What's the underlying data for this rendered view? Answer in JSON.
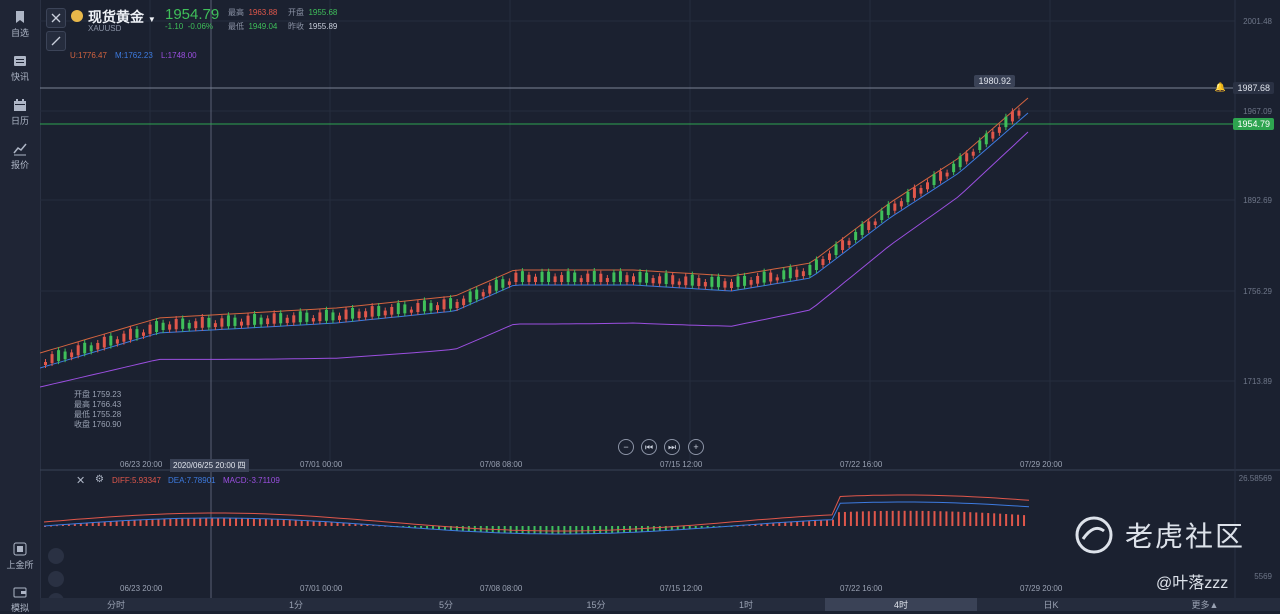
{
  "sidebar": {
    "items": [
      {
        "label": "自选",
        "icon": "bookmark-icon"
      },
      {
        "label": "快讯",
        "icon": "news-icon"
      },
      {
        "label": "日历",
        "icon": "calendar-icon"
      },
      {
        "label": "报价",
        "icon": "chart-line-icon"
      },
      {
        "label": "上金所",
        "icon": "exchange-icon"
      },
      {
        "label": "模拟",
        "icon": "wallet-icon"
      }
    ]
  },
  "header": {
    "symbol_name": "现货黄金",
    "symbol_code": "XAUUSD",
    "price": "1954.79",
    "change": "-1.10",
    "change_pct": "-0.06%",
    "high_label": "最高",
    "high": "1963.88",
    "open_label": "开盘",
    "open": "1955.68",
    "low_label": "最低",
    "low": "1949.04",
    "prev_label": "昨收",
    "prev": "1955.89"
  },
  "indicator": {
    "u": "U:1776.47",
    "m": "M:1762.23",
    "l": "L:1748.00"
  },
  "ohlc_box": {
    "open": "开盘 1759.23",
    "high": "最高 1766.43",
    "low": "最低 1755.28",
    "close": "收盘 1760.90"
  },
  "price_axis": [
    "2001.48",
    "1967.09",
    "1892.69",
    "1756.29",
    "1713.89"
  ],
  "price_tags": {
    "peak": "1980.92",
    "line": "1987.68",
    "current": "1954.79"
  },
  "time_axis": {
    "labels": [
      "06/23 20:00",
      "07/01 00:00",
      "07/08 08:00",
      "07/15 12:00",
      "07/22 16:00",
      "07/29 20:00"
    ],
    "crosshair": "2020/06/25 20:00 四"
  },
  "macd": {
    "diff": "DIFF:5.93347",
    "dea": "DEA:7.78901",
    "macd": "MACD:-3.71109",
    "axis_top": "26.58569",
    "axis_bottom": "5569"
  },
  "tabs": [
    "分时",
    "1分",
    "5分",
    "15分",
    "1时",
    "4时",
    "日K",
    "更多"
  ],
  "active_tab": "4时",
  "watermark": {
    "brand": "老虎社区",
    "user": "@叶落zzz"
  },
  "colors": {
    "up": "#e0574b",
    "down": "#3fbf5a",
    "mid": "#3d7be0",
    "lower": "#9b4fe0",
    "upper": "#d4643f"
  }
}
